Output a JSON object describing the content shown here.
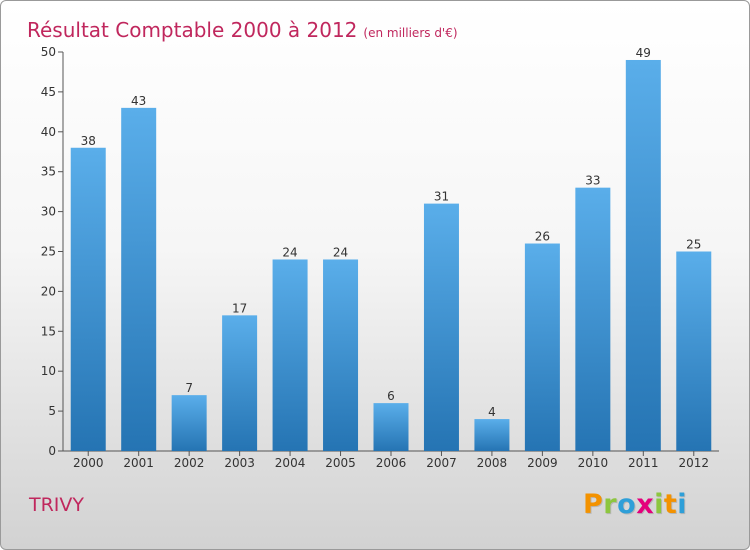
{
  "header": {
    "title": "Résultat Comptable 2000 à 2012",
    "subtitle": "(en milliers d'€)"
  },
  "footer": {
    "commune": "TRIVY",
    "logo_letters": [
      {
        "ch": "P",
        "color": "#f39200"
      },
      {
        "ch": "r",
        "color": "#8dc63f"
      },
      {
        "ch": "o",
        "color": "#2e9fd8"
      },
      {
        "ch": "x",
        "color": "#e4007c"
      },
      {
        "ch": "i",
        "color": "#8dc63f"
      },
      {
        "ch": "t",
        "color": "#f39200"
      },
      {
        "ch": "i",
        "color": "#2e9fd8"
      }
    ]
  },
  "colors": {
    "bar_top": "#5aaeea",
    "bar_bottom": "#2574b3",
    "title": "#c0275d"
  },
  "chart_data": {
    "type": "bar",
    "title": "Résultat Comptable 2000 à 2012",
    "subtitle": "(en milliers d'€)",
    "categories": [
      "2000",
      "2001",
      "2002",
      "2003",
      "2004",
      "2005",
      "2006",
      "2007",
      "2008",
      "2009",
      "2010",
      "2011",
      "2012"
    ],
    "values": [
      38,
      43,
      7,
      17,
      24,
      24,
      6,
      31,
      4,
      26,
      33,
      49,
      25
    ],
    "yticks": [
      0,
      5,
      10,
      15,
      20,
      25,
      30,
      35,
      40,
      45,
      50
    ],
    "ylim": [
      0,
      50
    ],
    "grid": false,
    "legend": "none"
  }
}
